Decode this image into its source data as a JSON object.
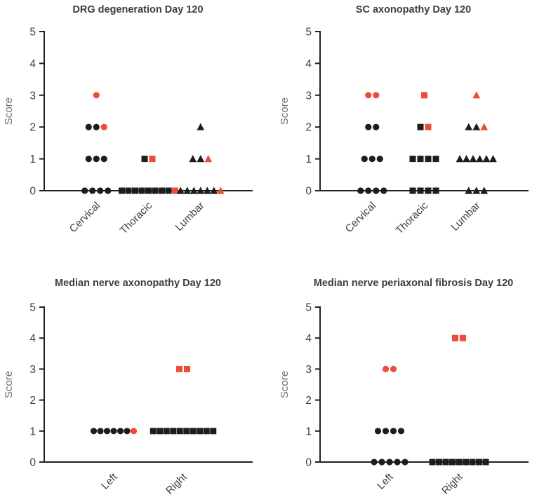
{
  "style": {
    "background": "#ffffff",
    "marker_black": "#1d1d1b",
    "marker_red": "#ee4b38",
    "axis_color": "#231f20",
    "tick_text_color": "#3f3f3f",
    "axis_label_color": "#6d6e71",
    "title_color": "#3d3d3d"
  },
  "chart_data": [
    {
      "type": "scatter",
      "title": "DRG degeneration Day 120",
      "ylabel": "Score",
      "ylim": [
        0,
        5
      ],
      "yticks": [
        0,
        1,
        2,
        3,
        4,
        5
      ],
      "categories": [
        "Cervical",
        "Thoracic",
        "Lumbar"
      ],
      "markers": [
        "circle",
        "square",
        "triangle"
      ],
      "points": [
        {
          "cat": 0,
          "score": 3,
          "colors": [
            "red"
          ]
        },
        {
          "cat": 0,
          "score": 2,
          "colors": [
            "black",
            "black",
            "red"
          ]
        },
        {
          "cat": 0,
          "score": 1,
          "colors": [
            "black",
            "black",
            "black"
          ]
        },
        {
          "cat": 0,
          "score": 0,
          "colors": [
            "black",
            "black",
            "black",
            "black"
          ]
        },
        {
          "cat": 1,
          "score": 1,
          "colors": [
            "black",
            "red"
          ]
        },
        {
          "cat": 1,
          "score": 0,
          "colors": [
            "black",
            "black",
            "black",
            "black",
            "black",
            "black",
            "black",
            "black",
            "red"
          ]
        },
        {
          "cat": 2,
          "score": 2,
          "colors": [
            "black"
          ]
        },
        {
          "cat": 2,
          "score": 1,
          "colors": [
            "black",
            "black",
            "red"
          ]
        },
        {
          "cat": 2,
          "score": 0,
          "colors": [
            "black",
            "black",
            "black",
            "black",
            "black",
            "black",
            "red"
          ]
        }
      ]
    },
    {
      "type": "scatter",
      "title": "SC axonopathy Day 120",
      "ylabel": "Score",
      "ylim": [
        0,
        5
      ],
      "yticks": [
        0,
        1,
        2,
        3,
        4,
        5
      ],
      "categories": [
        "Cervical",
        "Thoracic",
        "Lumbar"
      ],
      "markers": [
        "circle",
        "square",
        "triangle"
      ],
      "points": [
        {
          "cat": 0,
          "score": 3,
          "colors": [
            "red",
            "red"
          ]
        },
        {
          "cat": 0,
          "score": 2,
          "colors": [
            "black",
            "black"
          ]
        },
        {
          "cat": 0,
          "score": 1,
          "colors": [
            "black",
            "black",
            "black"
          ]
        },
        {
          "cat": 0,
          "score": 0,
          "colors": [
            "black",
            "black",
            "black",
            "black"
          ]
        },
        {
          "cat": 1,
          "score": 3,
          "colors": [
            "red"
          ]
        },
        {
          "cat": 1,
          "score": 2,
          "colors": [
            "black",
            "red"
          ]
        },
        {
          "cat": 1,
          "score": 1,
          "colors": [
            "black",
            "black",
            "black",
            "black"
          ]
        },
        {
          "cat": 1,
          "score": 0,
          "colors": [
            "black",
            "black",
            "black",
            "black"
          ]
        },
        {
          "cat": 2,
          "score": 3,
          "colors": [
            "red"
          ]
        },
        {
          "cat": 2,
          "score": 2,
          "colors": [
            "black",
            "black",
            "red"
          ]
        },
        {
          "cat": 2,
          "score": 1,
          "colors": [
            "black",
            "black",
            "black",
            "black",
            "black",
            "black"
          ]
        },
        {
          "cat": 2,
          "score": 0,
          "colors": [
            "black",
            "black",
            "black"
          ]
        }
      ]
    },
    {
      "type": "scatter",
      "title": "Median nerve axonopathy Day 120",
      "ylabel": "Score",
      "ylim": [
        0,
        5
      ],
      "yticks": [
        0,
        1,
        2,
        3,
        4,
        5
      ],
      "categories": [
        "Left",
        "Right"
      ],
      "markers": [
        "circle",
        "square"
      ],
      "points": [
        {
          "cat": 0,
          "score": 1,
          "colors": [
            "black",
            "black",
            "black",
            "black",
            "black",
            "black",
            "red"
          ]
        },
        {
          "cat": 1,
          "score": 3,
          "colors": [
            "red",
            "red"
          ]
        },
        {
          "cat": 1,
          "score": 1,
          "colors": [
            "black",
            "black",
            "black",
            "black",
            "black",
            "black",
            "black",
            "black",
            "black",
            "black"
          ]
        }
      ]
    },
    {
      "type": "scatter",
      "title": "Median nerve periaxonal fibrosis Day 120",
      "ylabel": "Score",
      "ylim": [
        0,
        5
      ],
      "yticks": [
        0,
        1,
        2,
        3,
        4,
        5
      ],
      "categories": [
        "Left",
        "Right"
      ],
      "markers": [
        "circle",
        "square"
      ],
      "points": [
        {
          "cat": 0,
          "score": 3,
          "colors": [
            "red",
            "red"
          ]
        },
        {
          "cat": 0,
          "score": 1,
          "colors": [
            "black",
            "black",
            "black",
            "black"
          ]
        },
        {
          "cat": 0,
          "score": 0,
          "colors": [
            "black",
            "black",
            "black",
            "black",
            "black"
          ]
        },
        {
          "cat": 1,
          "score": 4,
          "colors": [
            "red",
            "red"
          ]
        },
        {
          "cat": 1,
          "score": 0,
          "colors": [
            "black",
            "black",
            "black",
            "black",
            "black",
            "black",
            "black",
            "black",
            "black"
          ]
        }
      ]
    }
  ]
}
